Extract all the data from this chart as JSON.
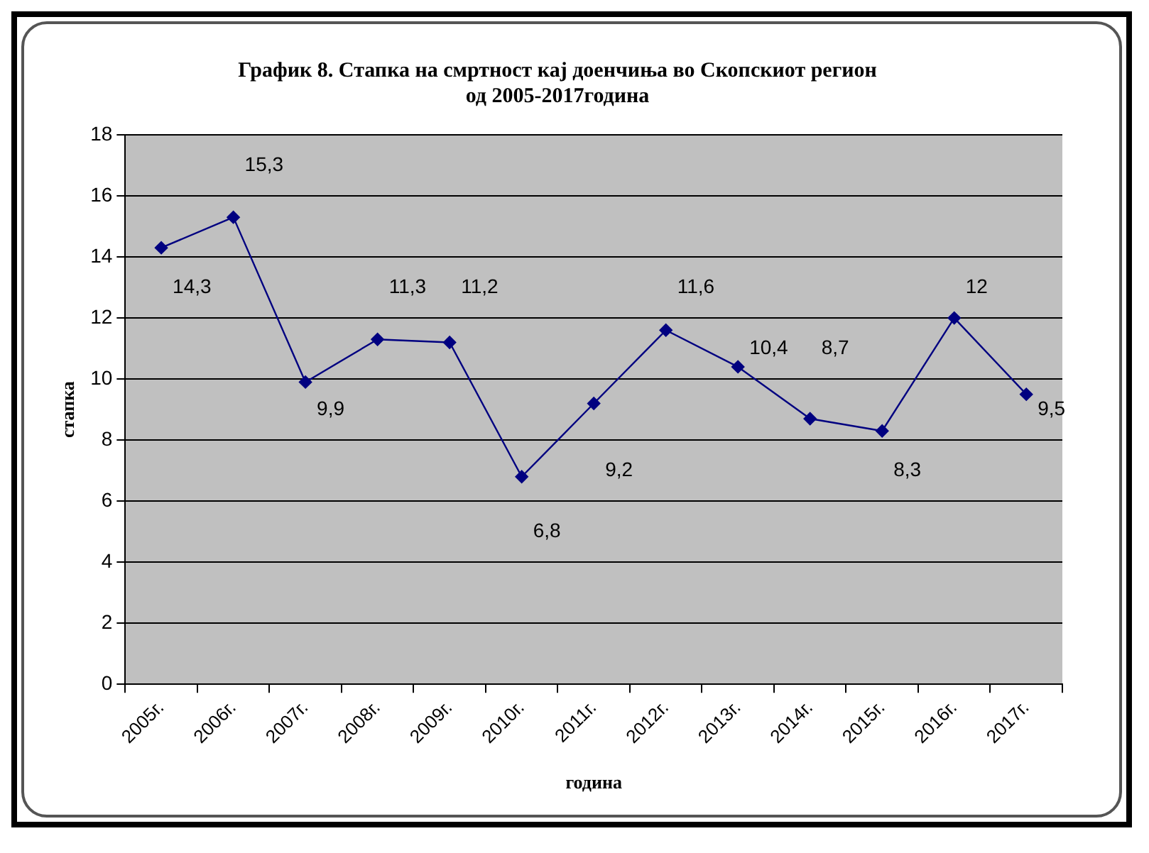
{
  "chart_data": {
    "type": "line",
    "title": "График 8. Стапка на смртност кај доенчиња во Скопскиот регион од 2005-2017година",
    "xlabel": "година",
    "ylabel": "стапка",
    "categories": [
      "2005г.",
      "2006г.",
      "2007г.",
      "2008г.",
      "2009г.",
      "2010г.",
      "2011г.",
      "2012г.",
      "2013г.",
      "2014г.",
      "2015г.",
      "2016г.",
      "2017г."
    ],
    "series": [
      {
        "color": "#000080",
        "values": [
          14.3,
          15.3,
          9.9,
          11.3,
          11.2,
          6.8,
          9.2,
          11.6,
          10.4,
          8.7,
          8.3,
          12,
          9.5
        ],
        "value_labels": [
          "14,3",
          "15,3",
          "9,9",
          "11,3",
          "11,2",
          "6,8",
          "9,2",
          "11,6",
          "10,4",
          "8,7",
          "8,3",
          "12",
          "9,5"
        ]
      }
    ],
    "ylim": [
      0,
      18
    ],
    "yticks": [
      0,
      2,
      4,
      6,
      8,
      10,
      12,
      14,
      16,
      18
    ],
    "grid": "y",
    "marker": "diamond",
    "line_style": "solid",
    "legend": false
  }
}
